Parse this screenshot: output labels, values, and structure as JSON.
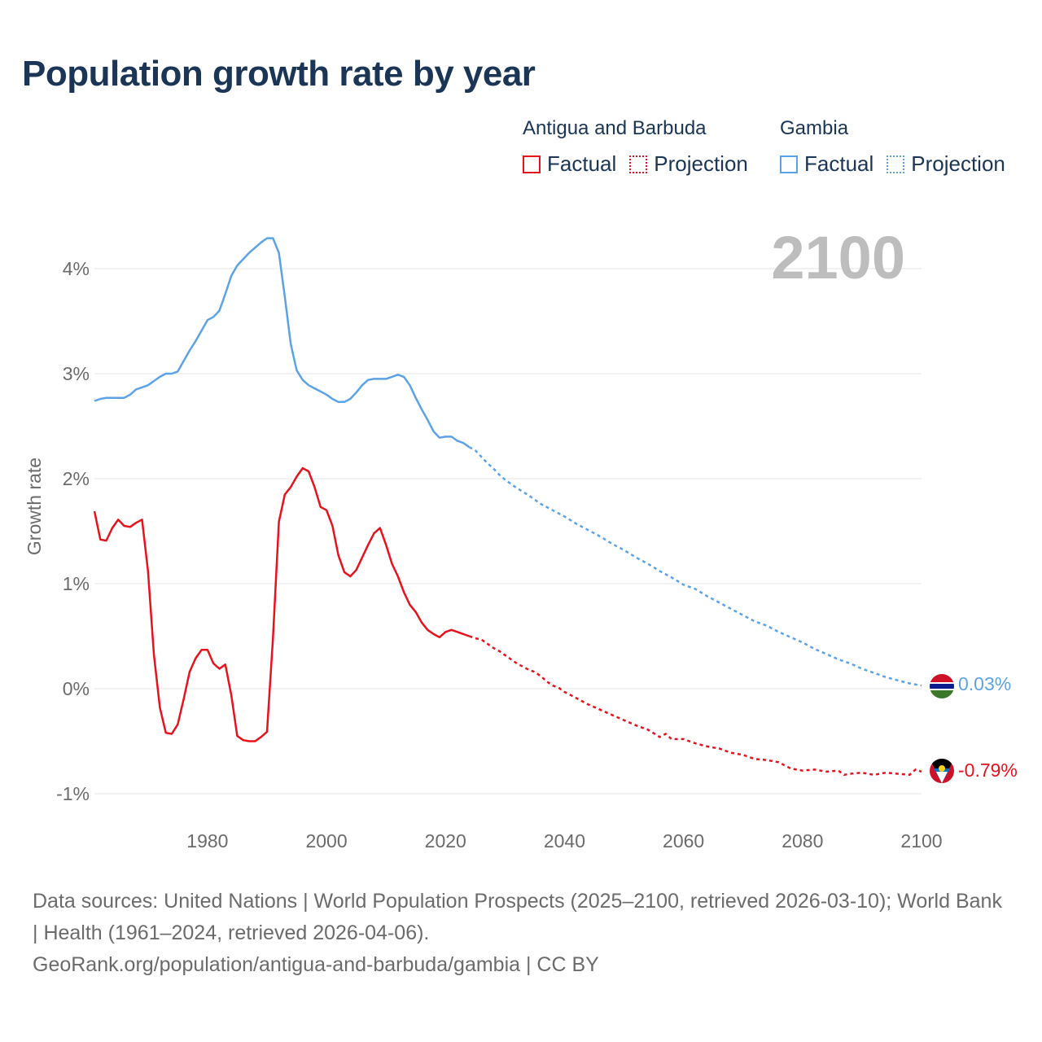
{
  "title": "Population growth rate by year",
  "legend": {
    "groups": [
      {
        "name": "Antigua and Barbuda",
        "factual": "Factual",
        "projection": "Projection",
        "color": "#e8121d"
      },
      {
        "name": "Gambia",
        "factual": "Factual",
        "projection": "Projection",
        "color": "#5ba3e6"
      }
    ]
  },
  "year_watermark": "2100",
  "footer": {
    "sources": "Data sources: United Nations | World Population Prospects (2025–2100, retrieved 2026-03-10); World Bank | Health (1961–2024, retrieved 2026-04-06).",
    "url": "GeoRank.org/population/antigua-and-barbuda/gambia | CC BY"
  },
  "chart_data": {
    "type": "line",
    "title": "Population growth rate by year",
    "xlabel": "",
    "ylabel": "Growth rate",
    "xlim": [
      1961,
      2100
    ],
    "ylim": [
      -1.2,
      4.4
    ],
    "x_ticks": [
      1980,
      2000,
      2020,
      2040,
      2060,
      2080,
      2100
    ],
    "x_tick_labels": [
      "1980",
      "2000",
      "2020",
      "2040",
      "2060",
      "2080",
      "2100"
    ],
    "y_ticks": [
      -1,
      0,
      1,
      2,
      3,
      4
    ],
    "y_tick_labels": [
      "-1%",
      "0%",
      "1%",
      "2%",
      "3%",
      "4%"
    ],
    "grid": true,
    "series": [
      {
        "name": "Gambia",
        "color": "#5ba3e6",
        "end_label": "0.03%",
        "factual": [
          [
            1961,
            2.74
          ],
          [
            1962,
            2.76
          ],
          [
            1963,
            2.77
          ],
          [
            1964,
            2.77
          ],
          [
            1965,
            2.77
          ],
          [
            1966,
            2.77
          ],
          [
            1967,
            2.8
          ],
          [
            1968,
            2.85
          ],
          [
            1969,
            2.87
          ],
          [
            1970,
            2.89
          ],
          [
            1971,
            2.93
          ],
          [
            1972,
            2.97
          ],
          [
            1973,
            3.0
          ],
          [
            1974,
            3.0
          ],
          [
            1975,
            3.02
          ],
          [
            1976,
            3.12
          ],
          [
            1977,
            3.22
          ],
          [
            1978,
            3.31
          ],
          [
            1979,
            3.41
          ],
          [
            1980,
            3.51
          ],
          [
            1981,
            3.54
          ],
          [
            1982,
            3.6
          ],
          [
            1983,
            3.76
          ],
          [
            1984,
            3.93
          ],
          [
            1985,
            4.03
          ],
          [
            1986,
            4.09
          ],
          [
            1987,
            4.15
          ],
          [
            1988,
            4.2
          ],
          [
            1989,
            4.25
          ],
          [
            1990,
            4.29
          ],
          [
            1991,
            4.29
          ],
          [
            1992,
            4.15
          ],
          [
            1993,
            3.73
          ],
          [
            1994,
            3.28
          ],
          [
            1995,
            3.03
          ],
          [
            1996,
            2.94
          ],
          [
            1997,
            2.89
          ],
          [
            1998,
            2.86
          ],
          [
            1999,
            2.83
          ],
          [
            2000,
            2.8
          ],
          [
            2001,
            2.76
          ],
          [
            2002,
            2.73
          ],
          [
            2003,
            2.73
          ],
          [
            2004,
            2.76
          ],
          [
            2005,
            2.82
          ],
          [
            2006,
            2.89
          ],
          [
            2007,
            2.94
          ],
          [
            2008,
            2.95
          ],
          [
            2009,
            2.95
          ],
          [
            2010,
            2.95
          ],
          [
            2011,
            2.97
          ],
          [
            2012,
            2.99
          ],
          [
            2013,
            2.97
          ],
          [
            2014,
            2.89
          ],
          [
            2015,
            2.77
          ],
          [
            2016,
            2.66
          ],
          [
            2017,
            2.56
          ],
          [
            2018,
            2.45
          ],
          [
            2019,
            2.39
          ],
          [
            2020,
            2.4
          ],
          [
            2021,
            2.4
          ],
          [
            2022,
            2.36
          ],
          [
            2023,
            2.34
          ],
          [
            2024,
            2.3
          ]
        ],
        "projection": [
          [
            2024,
            2.3
          ],
          [
            2025,
            2.27
          ],
          [
            2026,
            2.21
          ],
          [
            2027,
            2.15
          ],
          [
            2028,
            2.1
          ],
          [
            2029,
            2.04
          ],
          [
            2030,
            1.99
          ],
          [
            2032,
            1.91
          ],
          [
            2034,
            1.84
          ],
          [
            2036,
            1.76
          ],
          [
            2038,
            1.7
          ],
          [
            2040,
            1.64
          ],
          [
            2042,
            1.57
          ],
          [
            2044,
            1.51
          ],
          [
            2046,
            1.45
          ],
          [
            2048,
            1.38
          ],
          [
            2050,
            1.32
          ],
          [
            2052,
            1.25
          ],
          [
            2054,
            1.19
          ],
          [
            2056,
            1.12
          ],
          [
            2058,
            1.06
          ],
          [
            2060,
            0.99
          ],
          [
            2062,
            0.95
          ],
          [
            2064,
            0.88
          ],
          [
            2066,
            0.82
          ],
          [
            2068,
            0.76
          ],
          [
            2070,
            0.7
          ],
          [
            2072,
            0.64
          ],
          [
            2074,
            0.6
          ],
          [
            2076,
            0.54
          ],
          [
            2078,
            0.49
          ],
          [
            2080,
            0.44
          ],
          [
            2082,
            0.38
          ],
          [
            2084,
            0.33
          ],
          [
            2086,
            0.28
          ],
          [
            2088,
            0.24
          ],
          [
            2090,
            0.19
          ],
          [
            2092,
            0.15
          ],
          [
            2094,
            0.11
          ],
          [
            2096,
            0.08
          ],
          [
            2098,
            0.05
          ],
          [
            2100,
            0.03
          ]
        ]
      },
      {
        "name": "Antigua and Barbuda",
        "color": "#e8121d",
        "end_label": "-0.79%",
        "factual": [
          [
            1961,
            1.69
          ],
          [
            1962,
            1.42
          ],
          [
            1963,
            1.41
          ],
          [
            1964,
            1.53
          ],
          [
            1965,
            1.61
          ],
          [
            1966,
            1.55
          ],
          [
            1967,
            1.54
          ],
          [
            1968,
            1.58
          ],
          [
            1969,
            1.61
          ],
          [
            1970,
            1.12
          ],
          [
            1971,
            0.32
          ],
          [
            1972,
            -0.18
          ],
          [
            1973,
            -0.42
          ],
          [
            1974,
            -0.43
          ],
          [
            1975,
            -0.34
          ],
          [
            1976,
            -0.1
          ],
          [
            1977,
            0.16
          ],
          [
            1978,
            0.29
          ],
          [
            1979,
            0.37
          ],
          [
            1980,
            0.37
          ],
          [
            1981,
            0.24
          ],
          [
            1982,
            0.19
          ],
          [
            1983,
            0.23
          ],
          [
            1984,
            -0.06
          ],
          [
            1985,
            -0.45
          ],
          [
            1986,
            -0.49
          ],
          [
            1987,
            -0.5
          ],
          [
            1988,
            -0.5
          ],
          [
            1989,
            -0.46
          ],
          [
            1990,
            -0.41
          ],
          [
            1991,
            0.48
          ],
          [
            1992,
            1.59
          ],
          [
            1993,
            1.85
          ],
          [
            1994,
            1.92
          ],
          [
            1995,
            2.02
          ],
          [
            1996,
            2.1
          ],
          [
            1997,
            2.07
          ],
          [
            1998,
            1.92
          ],
          [
            1999,
            1.73
          ],
          [
            2000,
            1.7
          ],
          [
            2001,
            1.55
          ],
          [
            2002,
            1.27
          ],
          [
            2003,
            1.11
          ],
          [
            2004,
            1.07
          ],
          [
            2005,
            1.13
          ],
          [
            2006,
            1.25
          ],
          [
            2007,
            1.37
          ],
          [
            2008,
            1.48
          ],
          [
            2009,
            1.53
          ],
          [
            2010,
            1.37
          ],
          [
            2011,
            1.19
          ],
          [
            2012,
            1.07
          ],
          [
            2013,
            0.92
          ],
          [
            2014,
            0.8
          ],
          [
            2015,
            0.73
          ],
          [
            2016,
            0.63
          ],
          [
            2017,
            0.56
          ],
          [
            2018,
            0.52
          ],
          [
            2019,
            0.49
          ],
          [
            2020,
            0.54
          ],
          [
            2021,
            0.56
          ],
          [
            2022,
            0.54
          ],
          [
            2023,
            0.52
          ],
          [
            2024,
            0.5
          ]
        ],
        "projection": [
          [
            2024,
            0.5
          ],
          [
            2025,
            0.48
          ],
          [
            2026,
            0.47
          ],
          [
            2027,
            0.43
          ],
          [
            2028,
            0.39
          ],
          [
            2029,
            0.36
          ],
          [
            2030,
            0.32
          ],
          [
            2031,
            0.28
          ],
          [
            2032,
            0.24
          ],
          [
            2033,
            0.21
          ],
          [
            2034,
            0.18
          ],
          [
            2035,
            0.16
          ],
          [
            2036,
            0.12
          ],
          [
            2037,
            0.07
          ],
          [
            2038,
            0.03
          ],
          [
            2039,
            0.01
          ],
          [
            2040,
            -0.03
          ],
          [
            2042,
            -0.09
          ],
          [
            2044,
            -0.15
          ],
          [
            2046,
            -0.2
          ],
          [
            2048,
            -0.25
          ],
          [
            2050,
            -0.3
          ],
          [
            2052,
            -0.35
          ],
          [
            2054,
            -0.39
          ],
          [
            2056,
            -0.46
          ],
          [
            2057,
            -0.43
          ],
          [
            2058,
            -0.48
          ],
          [
            2060,
            -0.48
          ],
          [
            2062,
            -0.52
          ],
          [
            2064,
            -0.55
          ],
          [
            2066,
            -0.57
          ],
          [
            2068,
            -0.61
          ],
          [
            2070,
            -0.63
          ],
          [
            2072,
            -0.67
          ],
          [
            2074,
            -0.68
          ],
          [
            2076,
            -0.7
          ],
          [
            2078,
            -0.76
          ],
          [
            2080,
            -0.78
          ],
          [
            2082,
            -0.77
          ],
          [
            2084,
            -0.79
          ],
          [
            2086,
            -0.78
          ],
          [
            2087,
            -0.82
          ],
          [
            2088,
            -0.81
          ],
          [
            2090,
            -0.8
          ],
          [
            2092,
            -0.82
          ],
          [
            2094,
            -0.8
          ],
          [
            2096,
            -0.81
          ],
          [
            2098,
            -0.82
          ],
          [
            2099,
            -0.77
          ],
          [
            2100,
            -0.79
          ]
        ]
      }
    ]
  }
}
